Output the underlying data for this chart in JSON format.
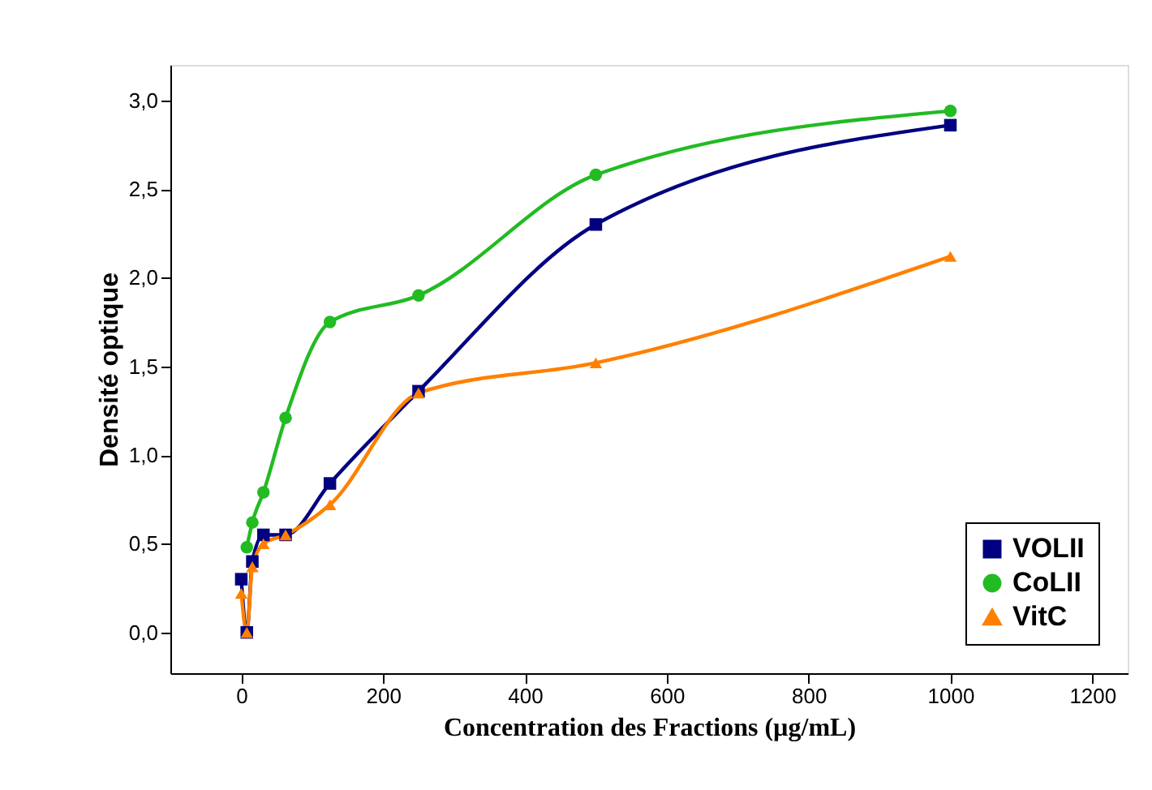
{
  "chart_data": {
    "type": "line",
    "xlabel": "Concentration des  Fractions (µg/mL)",
    "ylabel": "Densité optique",
    "x": [
      0,
      7.8,
      15.6,
      31.25,
      62.5,
      125,
      250,
      500,
      1000
    ],
    "series": [
      {
        "name": "VOLII",
        "color": "#000080",
        "marker": "square",
        "values": [
          0.3,
          0.0,
          0.4,
          0.55,
          0.55,
          0.84,
          1.36,
          2.3,
          2.86
        ]
      },
      {
        "name": "CoLII",
        "color": "#22bb22",
        "marker": "circle",
        "values": [
          null,
          0.48,
          0.62,
          0.79,
          1.21,
          1.75,
          1.9,
          2.58,
          2.94
        ]
      },
      {
        "name": "VitC",
        "color": "#ff8000",
        "marker": "triangle",
        "values": [
          0.22,
          0.0,
          0.37,
          0.5,
          0.55,
          0.72,
          1.35,
          1.52,
          2.12
        ]
      }
    ],
    "xlim": [
      -100,
      1250
    ],
    "xticks": [
      0,
      200,
      400,
      600,
      800,
      1000,
      1200
    ],
    "ylim": [
      -0.23,
      3.2
    ],
    "yticks": [
      {
        "value": 0,
        "label": "0,0"
      },
      {
        "value": 0.5,
        "label": "0,5"
      },
      {
        "value": 1,
        "label": "1,0"
      },
      {
        "value": 1.5,
        "label": "1,5"
      },
      {
        "value": 2,
        "label": "2,0"
      },
      {
        "value": 2.5,
        "label": "2,5"
      },
      {
        "value": 3,
        "label": "3,0"
      }
    ],
    "grid": false,
    "legend": "bottom right",
    "line_style": "solid"
  }
}
